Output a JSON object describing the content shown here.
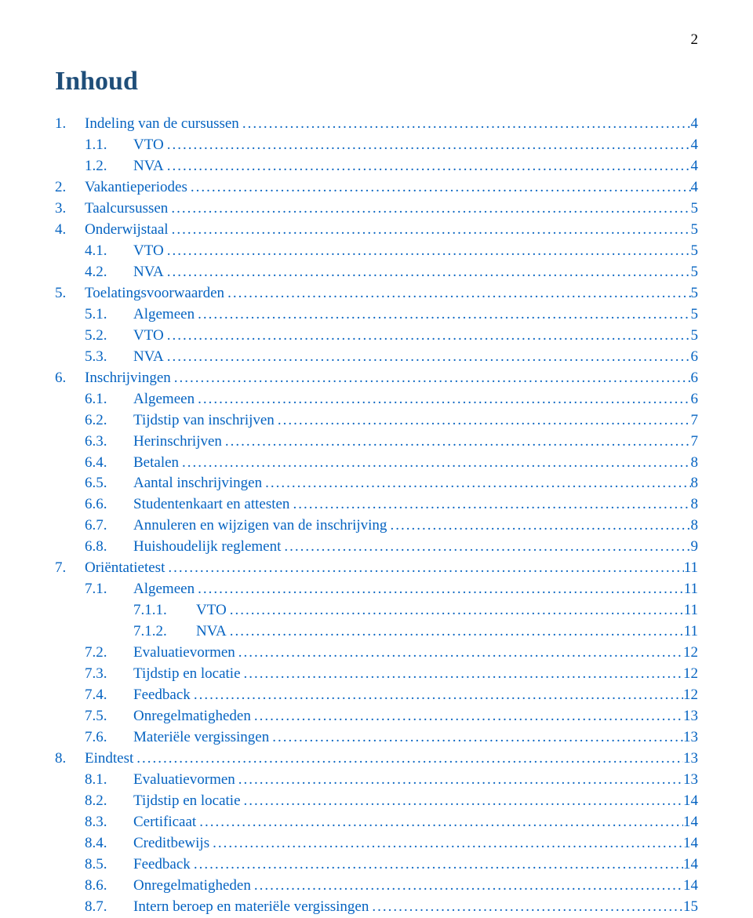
{
  "page_number": "2",
  "title": "Inhoud",
  "link_color": "#0563c1",
  "title_color": "#1f4e79",
  "toc": [
    {
      "indent": 0,
      "num": "1.",
      "label": "Indeling van de cursussen",
      "page": "4"
    },
    {
      "indent": 1,
      "num": "1.1.",
      "label": "VTO",
      "page": "4"
    },
    {
      "indent": 1,
      "num": "1.2.",
      "label": "NVA",
      "page": "4"
    },
    {
      "indent": 0,
      "num": "2.",
      "label": "Vakantieperiodes",
      "page": "4"
    },
    {
      "indent": 0,
      "num": "3.",
      "label": "Taalcursussen",
      "page": "5"
    },
    {
      "indent": 0,
      "num": "4.",
      "label": "Onderwijstaal",
      "page": "5"
    },
    {
      "indent": 1,
      "num": "4.1.",
      "label": "VTO",
      "page": "5"
    },
    {
      "indent": 1,
      "num": "4.2.",
      "label": "NVA",
      "page": "5"
    },
    {
      "indent": 0,
      "num": "5.",
      "label": "Toelatingsvoorwaarden",
      "page": "5"
    },
    {
      "indent": 1,
      "num": "5.1.",
      "label": "Algemeen",
      "page": "5"
    },
    {
      "indent": 1,
      "num": "5.2.",
      "label": "VTO",
      "page": "5"
    },
    {
      "indent": 1,
      "num": "5.3.",
      "label": "NVA",
      "page": "6"
    },
    {
      "indent": 0,
      "num": "6.",
      "label": "Inschrijvingen",
      "page": "6"
    },
    {
      "indent": 1,
      "num": "6.1.",
      "label": "Algemeen",
      "page": "6"
    },
    {
      "indent": 1,
      "num": "6.2.",
      "label": "Tijdstip van inschrijven",
      "page": "7"
    },
    {
      "indent": 1,
      "num": "6.3.",
      "label": "Herinschrijven",
      "page": "7"
    },
    {
      "indent": 1,
      "num": "6.4.",
      "label": "Betalen",
      "page": "8"
    },
    {
      "indent": 1,
      "num": "6.5.",
      "label": "Aantal inschrijvingen",
      "page": "8"
    },
    {
      "indent": 1,
      "num": "6.6.",
      "label": "Studentenkaart en attesten",
      "page": "8"
    },
    {
      "indent": 1,
      "num": "6.7.",
      "label": "Annuleren en wijzigen van de inschrijving",
      "page": "8"
    },
    {
      "indent": 1,
      "num": "6.8.",
      "label": "Huishoudelijk reglement",
      "page": "9"
    },
    {
      "indent": 0,
      "num": "7.",
      "label": "Oriëntatietest",
      "page": "11"
    },
    {
      "indent": 1,
      "num": "7.1.",
      "label": "Algemeen",
      "page": "11"
    },
    {
      "indent": 2,
      "num": "7.1.1.",
      "label": "VTO",
      "page": "11"
    },
    {
      "indent": 2,
      "num": "7.1.2.",
      "label": "NVA",
      "page": "11"
    },
    {
      "indent": 1,
      "num": "7.2.",
      "label": "Evaluatievormen",
      "page": "12"
    },
    {
      "indent": 1,
      "num": "7.3.",
      "label": "Tijdstip en locatie",
      "page": "12"
    },
    {
      "indent": 1,
      "num": "7.4.",
      "label": "Feedback",
      "page": "12"
    },
    {
      "indent": 1,
      "num": "7.5.",
      "label": "Onregelmatigheden",
      "page": "13"
    },
    {
      "indent": 1,
      "num": "7.6.",
      "label": "Materiële vergissingen",
      "page": "13"
    },
    {
      "indent": 0,
      "num": "8.",
      "label": "Eindtest",
      "page": "13"
    },
    {
      "indent": 1,
      "num": "8.1.",
      "label": "Evaluatievormen",
      "page": "13"
    },
    {
      "indent": 1,
      "num": "8.2.",
      "label": "Tijdstip en locatie",
      "page": "14"
    },
    {
      "indent": 1,
      "num": "8.3.",
      "label": "Certificaat",
      "page": "14"
    },
    {
      "indent": 1,
      "num": "8.4.",
      "label": "Creditbewijs",
      "page": "14"
    },
    {
      "indent": 1,
      "num": "8.5.",
      "label": "Feedback",
      "page": "14"
    },
    {
      "indent": 1,
      "num": "8.6.",
      "label": "Onregelmatigheden",
      "page": "14"
    },
    {
      "indent": 1,
      "num": "8.7.",
      "label": "Intern beroep en materiële vergissingen",
      "page": "15"
    }
  ]
}
